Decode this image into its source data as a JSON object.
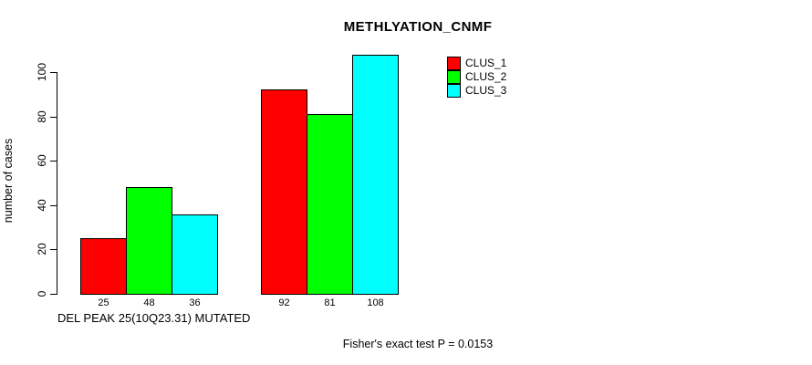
{
  "chart_data": {
    "type": "bar",
    "title": "METHLYATION_CNMF",
    "ylabel": "number of cases",
    "xlabel": "DEL PEAK 25(10Q23.31) MUTATED",
    "ylim": [
      0,
      100
    ],
    "yticks": [
      0,
      20,
      40,
      60,
      80,
      100
    ],
    "grid": false,
    "legend_position": "top-right",
    "series": [
      {
        "name": "CLUS_1",
        "color": "#ff0000",
        "values": [
          25,
          92
        ]
      },
      {
        "name": "CLUS_2",
        "color": "#00ff00",
        "values": [
          48,
          81
        ]
      },
      {
        "name": "CLUS_3",
        "color": "#00ffff",
        "values": [
          36,
          108
        ]
      }
    ],
    "show_bar_values": true,
    "bar_border_color": "#000000",
    "annotation": "Fisher's exact test P = 0.0153"
  }
}
